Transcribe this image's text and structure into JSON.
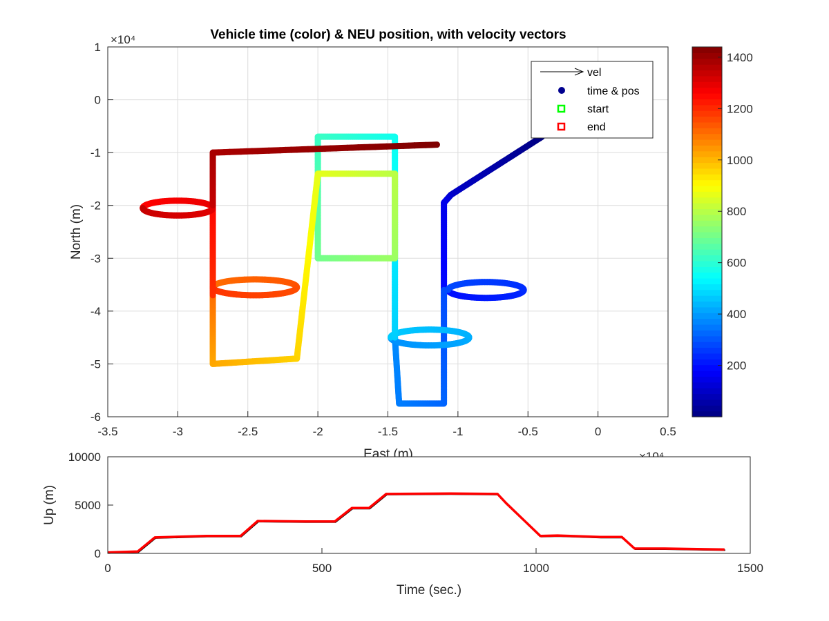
{
  "chart_data": [
    {
      "type": "scatter",
      "title": "Vehicle time (color) & NEU position, with velocity vectors",
      "xlabel": "East (m)",
      "ylabel": "North (m)",
      "x_exponent_label": "×10⁴",
      "y_exponent_label": "×10⁴",
      "xlim": [
        -35000,
        5000
      ],
      "ylim": [
        -60000,
        10000
      ],
      "xticks": [
        "-3.5",
        "-3",
        "-2.5",
        "-2",
        "-1.5",
        "-1",
        "-0.5",
        "0",
        "0.5"
      ],
      "yticks": [
        "1",
        "0",
        "-1",
        "-2",
        "-3",
        "-4",
        "-5",
        "-6"
      ],
      "grid": true,
      "legend_position": "top-right",
      "legend": [
        {
          "name": "vel",
          "marker": "arrow",
          "color": "#000000"
        },
        {
          "name": "time & pos",
          "marker": "filled-circle",
          "color": "#00008f"
        },
        {
          "name": "start",
          "marker": "open-square",
          "color": "#00ff00"
        },
        {
          "name": "end",
          "marker": "open-square",
          "color": "#ff0000"
        }
      ],
      "colormap": "jet",
      "colorbar": {
        "range": [
          0,
          1440
        ],
        "ticks": [
          "200",
          "400",
          "600",
          "800",
          "1000",
          "1200",
          "1400"
        ]
      },
      "trajectory_segments": [
        {
          "t": [
            0,
            100
          ],
          "kind": "line",
          "from": [
            -4000,
            -7000
          ],
          "to": [
            -10500,
            -18000
          ]
        },
        {
          "t": [
            100,
            150
          ],
          "kind": "line",
          "from": [
            -10500,
            -18000
          ],
          "to": [
            -11000,
            -19500
          ]
        },
        {
          "t": [
            150,
            190
          ],
          "kind": "line",
          "from": [
            -11000,
            -19500
          ],
          "to": [
            -11000,
            -36000
          ]
        },
        {
          "t": [
            190,
            285
          ],
          "kind": "loop",
          "center": [
            -8000,
            -36000
          ],
          "radius": [
            2700,
            1500
          ]
        },
        {
          "t": [
            285,
            320
          ],
          "kind": "line",
          "from": [
            -11000,
            -36000
          ],
          "to": [
            -11000,
            -57500
          ]
        },
        {
          "t": [
            320,
            355
          ],
          "kind": "line",
          "from": [
            -11000,
            -57500
          ],
          "to": [
            -14200,
            -57500
          ]
        },
        {
          "t": [
            355,
            375
          ],
          "kind": "line",
          "from": [
            -14200,
            -57500
          ],
          "to": [
            -14500,
            -45000
          ]
        },
        {
          "t": [
            375,
            470
          ],
          "kind": "loop",
          "center": [
            -12000,
            -45000
          ],
          "radius": [
            2800,
            1500
          ]
        },
        {
          "t": [
            470,
            520
          ],
          "kind": "line",
          "from": [
            -14500,
            -45000
          ],
          "to": [
            -14500,
            -25000
          ]
        },
        {
          "t": [
            520,
            560
          ],
          "kind": "line",
          "from": [
            -14500,
            -25000
          ],
          "to": [
            -14500,
            -7000
          ]
        },
        {
          "t": [
            560,
            620
          ],
          "kind": "line",
          "from": [
            -14500,
            -7000
          ],
          "to": [
            -20000,
            -7000
          ]
        },
        {
          "t": [
            620,
            700
          ],
          "kind": "line",
          "from": [
            -20000,
            -7000
          ],
          "to": [
            -20000,
            -30000
          ]
        },
        {
          "t": [
            700,
            760
          ],
          "kind": "line",
          "from": [
            -20000,
            -30000
          ],
          "to": [
            -14500,
            -30000
          ]
        },
        {
          "t": [
            760,
            800
          ],
          "kind": "line",
          "from": [
            -14500,
            -30000
          ],
          "to": [
            -14500,
            -14000
          ]
        },
        {
          "t": [
            800,
            860
          ],
          "kind": "line",
          "from": [
            -14500,
            -14000
          ],
          "to": [
            -20000,
            -14000
          ]
        },
        {
          "t": [
            860,
            960
          ],
          "kind": "line",
          "from": [
            -20000,
            -14000
          ],
          "to": [
            -21500,
            -49000
          ]
        },
        {
          "t": [
            960,
            1020
          ],
          "kind": "line",
          "from": [
            -21500,
            -49000
          ],
          "to": [
            -27500,
            -50000
          ]
        },
        {
          "t": [
            1020,
            1100
          ],
          "kind": "line",
          "from": [
            -27500,
            -50000
          ],
          "to": [
            -27500,
            -37000
          ]
        },
        {
          "t": [
            1100,
            1190
          ],
          "kind": "loop",
          "center": [
            -24500,
            -35500
          ],
          "radius": [
            3000,
            1500
          ]
        },
        {
          "t": [
            1190,
            1250
          ],
          "kind": "line",
          "from": [
            -27500,
            -37000
          ],
          "to": [
            -27500,
            -20000
          ]
        },
        {
          "t": [
            1250,
            1340
          ],
          "kind": "loop",
          "center": [
            -30000,
            -20500
          ],
          "radius": [
            2500,
            1400
          ]
        },
        {
          "t": [
            1340,
            1380
          ],
          "kind": "line",
          "from": [
            -27500,
            -20000
          ],
          "to": [
            -27500,
            -10000
          ]
        },
        {
          "t": [
            1380,
            1440
          ],
          "kind": "line",
          "from": [
            -27500,
            -10000
          ],
          "to": [
            -11500,
            -8500
          ]
        }
      ]
    },
    {
      "type": "line",
      "title": "",
      "xlabel": "Time (sec.)",
      "ylabel": "Up (m)",
      "xlim": [
        0,
        1500
      ],
      "ylim": [
        0,
        10000
      ],
      "xticks": [
        "0",
        "500",
        "1000",
        "1500"
      ],
      "yticks": [
        "0",
        "5000",
        "10000"
      ],
      "grid": false,
      "series": [
        {
          "color": "#ff0000",
          "x": [
            0,
            70,
            110,
            230,
            310,
            350,
            460,
            530,
            570,
            610,
            650,
            800,
            910,
            930,
            1010,
            1050,
            1150,
            1200,
            1220,
            1230,
            1300,
            1440
          ],
          "y": [
            100,
            200,
            1650,
            1800,
            1800,
            3350,
            3300,
            3300,
            4700,
            4700,
            6150,
            6200,
            6150,
            5200,
            1800,
            1850,
            1700,
            1700,
            900,
            500,
            500,
            400
          ]
        }
      ]
    }
  ]
}
